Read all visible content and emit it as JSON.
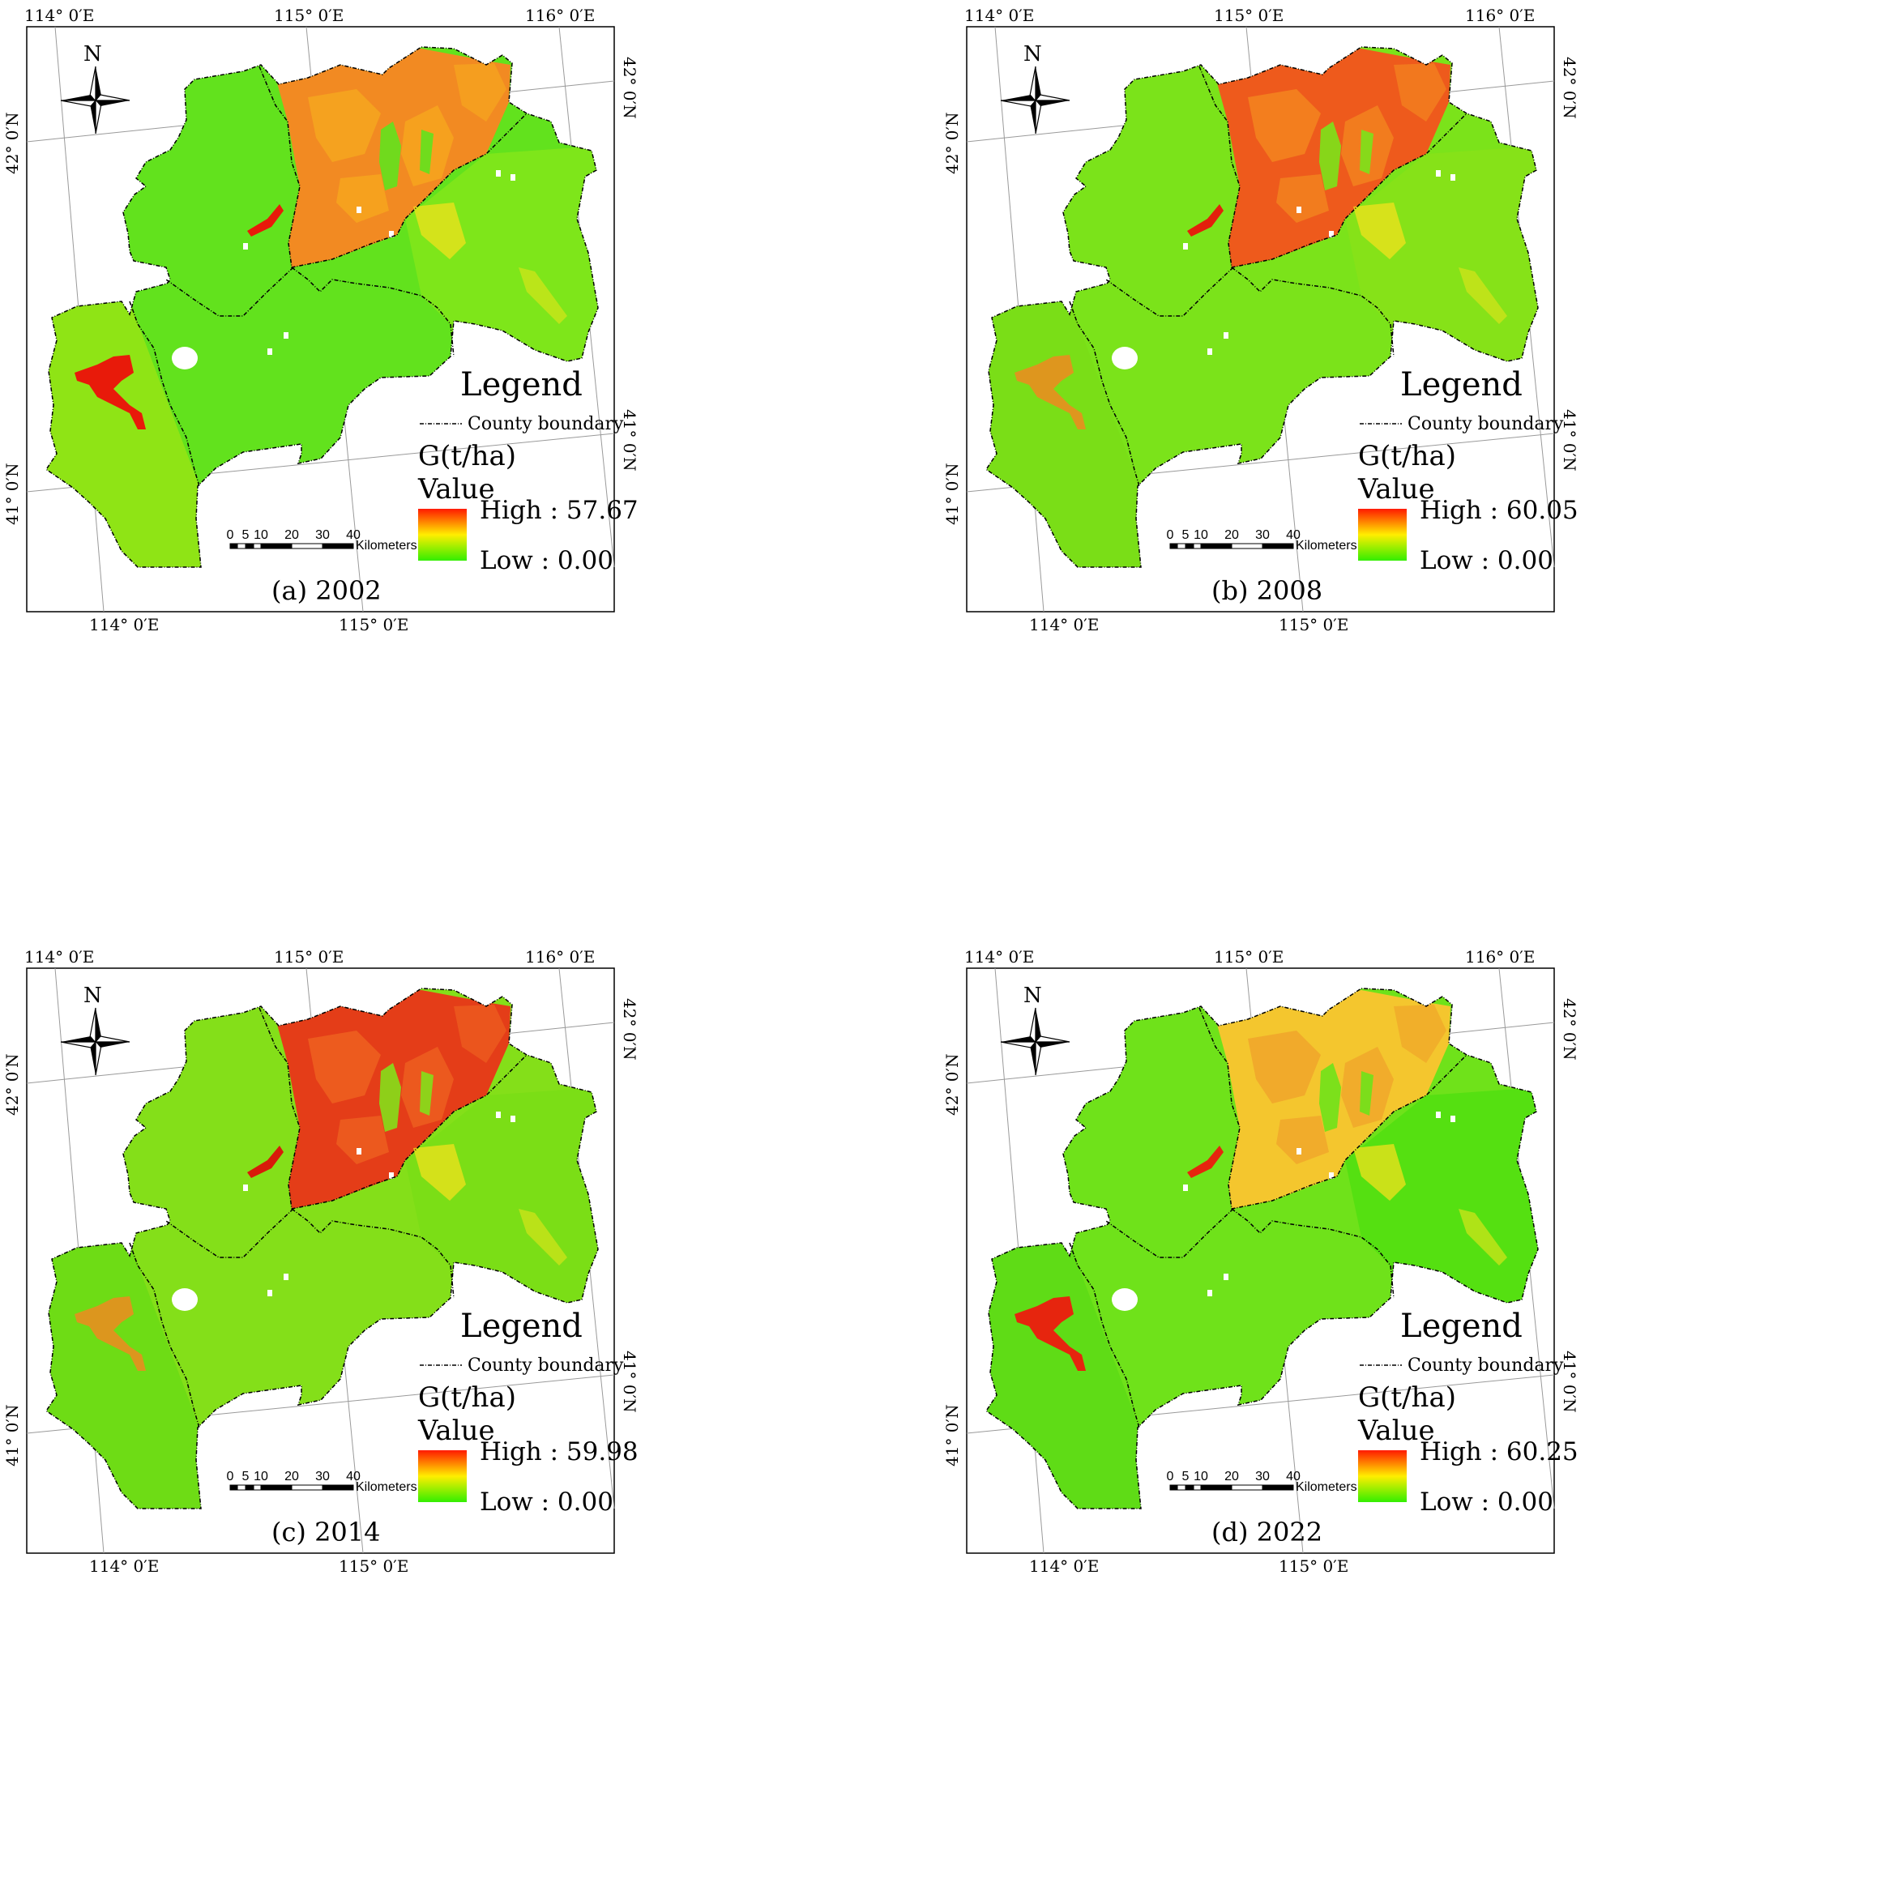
{
  "coords": {
    "lon_114": "114° 0′E",
    "lon_115": "115° 0′E",
    "lon_116": "116° 0′E",
    "lat_42": "42° 0′N",
    "lat_41": "41° 0′N"
  },
  "north_label": "N",
  "legend": {
    "title": "Legend",
    "boundary_label": "County boundary",
    "variable": "G(t/ha)",
    "value_label": "Value",
    "colors": {
      "high": "#ff1a00",
      "mid": "#ffee00",
      "low": "#33ee00"
    }
  },
  "scalebar": {
    "ticks": [
      "0",
      "5",
      "10",
      "20",
      "30",
      "40"
    ],
    "unit": "Kilometers"
  },
  "panels": [
    {
      "caption": "(a) 2002",
      "high": "High : 57.67",
      "low": "Low : 0.00"
    },
    {
      "caption": "(b) 2008",
      "high": "High : 60.05",
      "low": "Low : 0.00"
    },
    {
      "caption": "(c) 2014",
      "high": "High : 59.98",
      "low": "Low : 0.00"
    },
    {
      "caption": "(d) 2022",
      "high": "High : 60.25",
      "low": "Low : 0.00"
    }
  ]
}
